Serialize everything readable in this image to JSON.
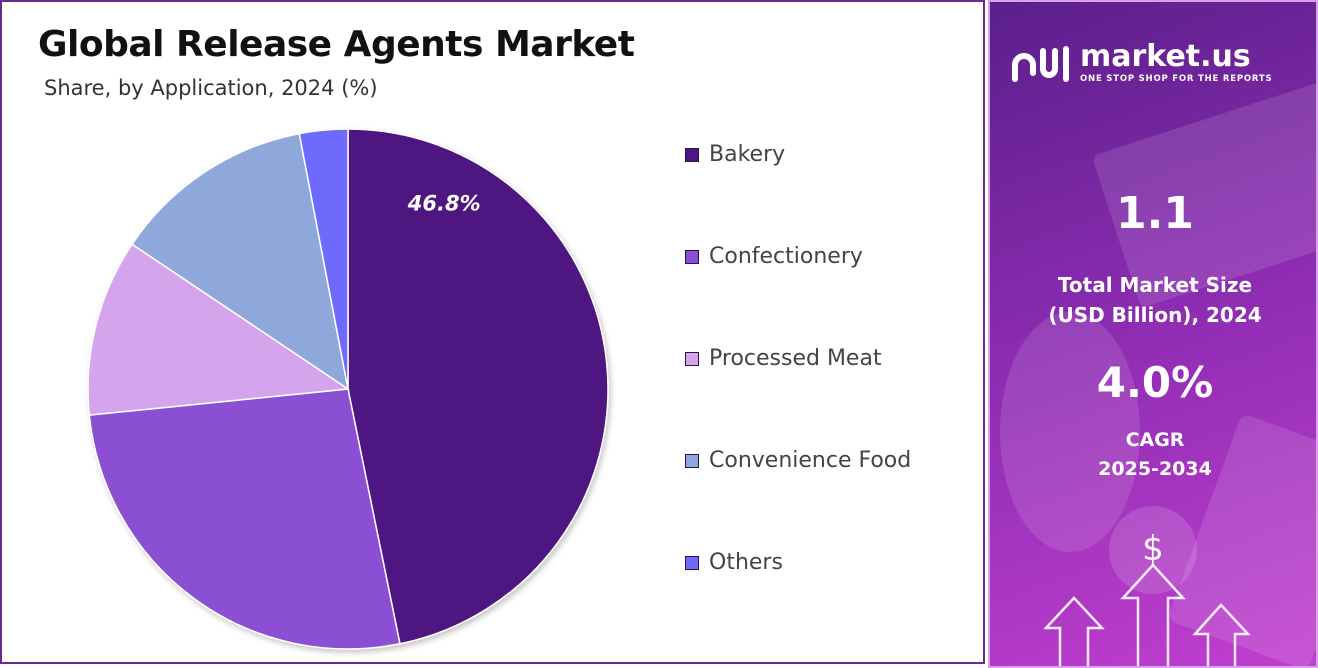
{
  "title": "Global Release Agents Market",
  "subtitle": "Share, by Application, 2024 (%)",
  "chart_data": {
    "type": "pie",
    "title": "Global Release Agents Market",
    "subtitle": "Share, by Application, 2024 (%)",
    "categories": [
      "Bakery",
      "Confectionery",
      "Processed Meat",
      "Convenience Food",
      "Others"
    ],
    "values": [
      46.8,
      26.6,
      11.0,
      12.6,
      3.0
    ],
    "colors": [
      "#4d1680",
      "#8b4fd4",
      "#d4a5ed",
      "#8fa8dc",
      "#6e6bfb"
    ],
    "data_labels": [
      {
        "category": "Bakery",
        "text": "46.8%"
      }
    ],
    "legend_position": "right"
  },
  "legend": [
    {
      "label": "Bakery",
      "color": "#4d1680"
    },
    {
      "label": "Confectionery",
      "color": "#8b4fd4"
    },
    {
      "label": "Processed Meat",
      "color": "#d4a5ed"
    },
    {
      "label": "Convenience Food",
      "color": "#8fa8dc"
    },
    {
      "label": "Others",
      "color": "#6e6bfb"
    }
  ],
  "brand": {
    "name": "market.us",
    "tagline": "ONE STOP SHOP FOR THE REPORTS",
    "logo_icon": "market-us-logo-icon"
  },
  "stats": {
    "market_size_value": "1.1",
    "market_size_label_line1": "Total Market Size",
    "market_size_label_line2": "(USD Billion), 2024",
    "cagr_value": "4.0%",
    "cagr_label_line1": "CAGR",
    "cagr_label_line2": "2025-2034"
  },
  "decor": {
    "dollar_symbol": "$",
    "icons": [
      "dollar-icon",
      "up-arrow-icon"
    ]
  }
}
